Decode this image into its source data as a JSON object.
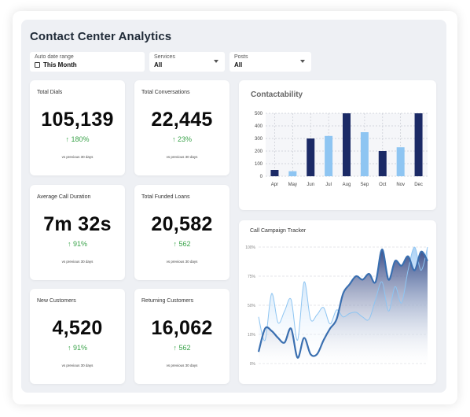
{
  "header": {
    "title": "Contact Center Analytics"
  },
  "filters": [
    {
      "label": "Auto date range",
      "value": "This Month",
      "icon": "calendar-icon"
    },
    {
      "label": "Services",
      "value": "All",
      "icon": "chevron-down-icon"
    },
    {
      "label": "Posts",
      "value": "All",
      "icon": "chevron-down-icon"
    }
  ],
  "metrics": [
    {
      "label": "Total Dials",
      "value": "105,139",
      "change": "↑ 180%",
      "sub": "vs previous 30 days"
    },
    {
      "label": "Total Conversations",
      "value": "22,445",
      "change": "↑ 23%",
      "sub": "vs previous 30 days"
    },
    {
      "label": "Average Call Duration",
      "value": "7m 32s",
      "change": "↑ 91%",
      "sub": "vs previous 30 days"
    },
    {
      "label": "Total Funded Loans",
      "value": "20,582",
      "change": "↑ 562",
      "sub": "vs previous 30 days"
    },
    {
      "label": "New Customers",
      "value": "4,520",
      "change": "↑ 91%",
      "sub": "vs previous 30 days"
    },
    {
      "label": "Returning Customers",
      "value": "16,062",
      "change": "↑ 562",
      "sub": "vs previous 30 days"
    }
  ],
  "colors": {
    "positive": "#3aa34a",
    "dark_bar": "#1b2a66",
    "light_bar": "#8ec5f2",
    "area_dark": "#2b3f7e",
    "area_light": "#a8d0f5"
  },
  "chart_data": [
    {
      "type": "bar",
      "title": "Contactability",
      "categories": [
        "Apr",
        "May",
        "Jun",
        "Jul",
        "Aug",
        "Sep",
        "Oct",
        "Nov",
        "Dec"
      ],
      "values": [
        50,
        40,
        300,
        320,
        500,
        350,
        200,
        230,
        500
      ],
      "ylim": [
        0,
        500
      ],
      "yticks": [
        "0",
        "100",
        "200",
        "300",
        "400",
        "500"
      ],
      "grid": true
    },
    {
      "type": "area",
      "title": "Call Campaign Tracker",
      "yticks": [
        "0%",
        "10%",
        "50%",
        "75%",
        "100%"
      ],
      "series": [
        {
          "values": [
            40,
            20,
            60,
            35,
            45,
            55,
            20,
            70,
            38,
            42,
            48,
            34,
            46,
            40,
            43,
            44,
            40,
            38,
            55,
            70,
            45,
            66,
            52,
            80,
            100,
            80,
            100
          ]
        },
        {
          "values": [
            10,
            30,
            28,
            22,
            18,
            30,
            5,
            22,
            8,
            8,
            20,
            30,
            38,
            60,
            68,
            75,
            72,
            77,
            70,
            98,
            72,
            88,
            84,
            92,
            80,
            96,
            88
          ]
        }
      ]
    }
  ]
}
